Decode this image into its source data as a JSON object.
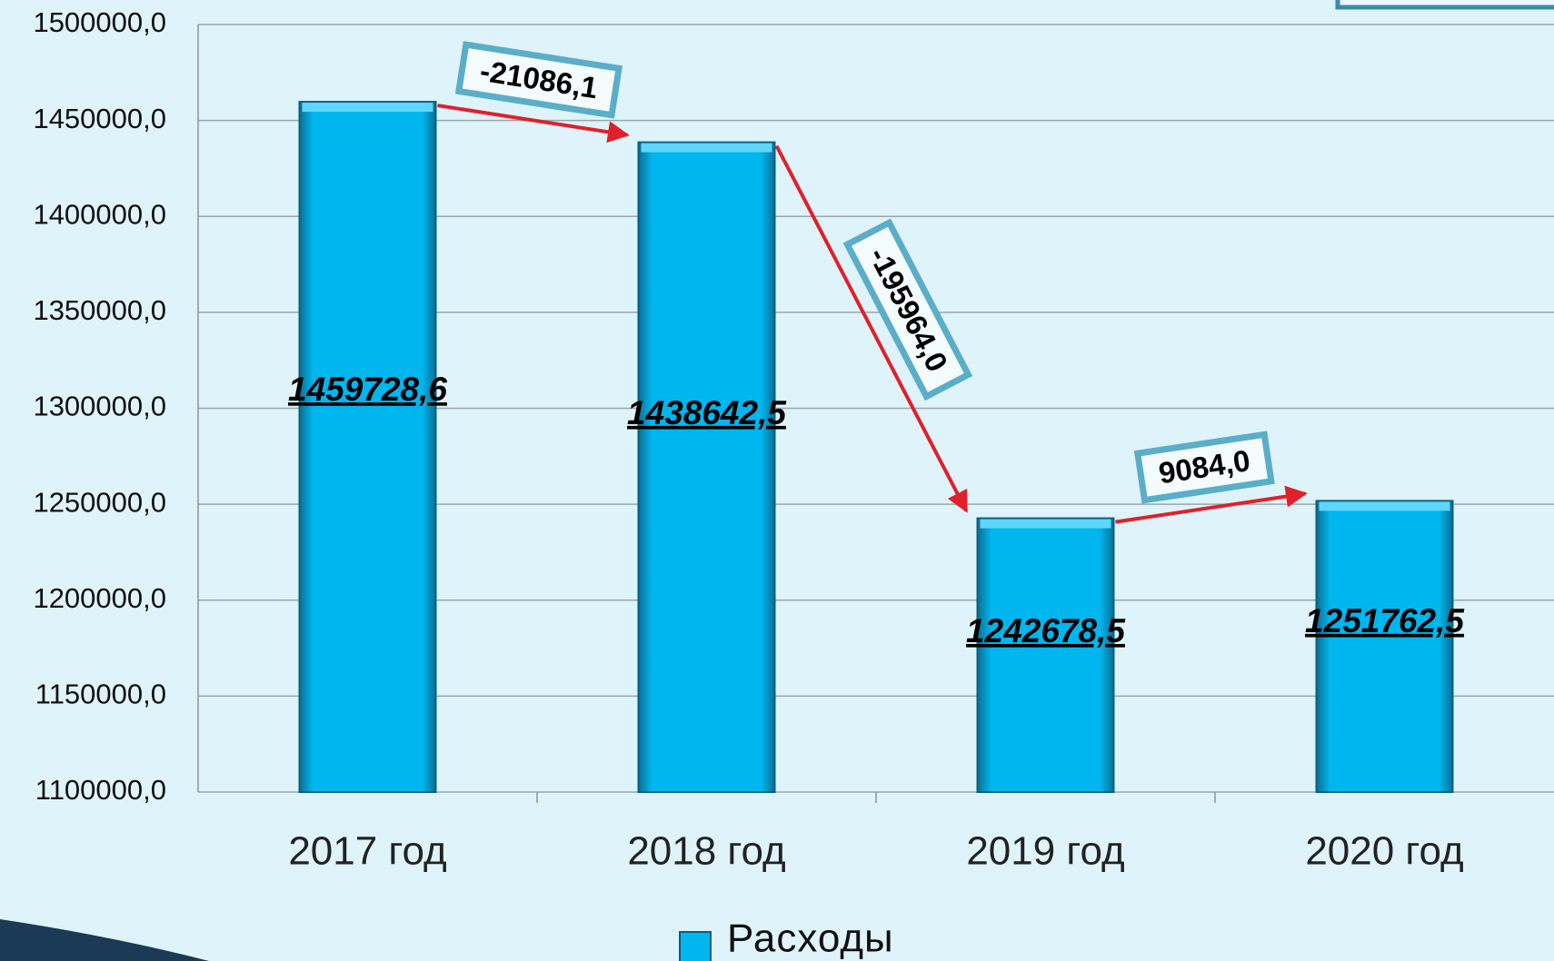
{
  "chart_data": {
    "type": "bar",
    "categories": [
      "2017 год",
      "2018 год",
      "2019 год",
      "2020 год"
    ],
    "series": [
      {
        "name": "Расходы",
        "color": "#00b6ee",
        "values": [
          1459728.6,
          1438642.5,
          1242678.5,
          1251762.5
        ],
        "value_labels": [
          "1459728,6",
          "1438642,5",
          "1242678,5",
          "1251762,5"
        ]
      }
    ],
    "annotations": [
      {
        "value": -21086.1,
        "label": "-21086,1"
      },
      {
        "value": -195964.0,
        "label": "-195964,0"
      },
      {
        "value": 9084.0,
        "label": "9084,0"
      }
    ],
    "ylim": [
      1100000,
      1500000
    ],
    "yticks": [
      {
        "value": 1100000,
        "label": "1100000,0"
      },
      {
        "value": 1150000,
        "label": "1150000,0"
      },
      {
        "value": 1200000,
        "label": "1200000,0"
      },
      {
        "value": 1250000,
        "label": "1250000,0"
      },
      {
        "value": 1300000,
        "label": "1300000,0"
      },
      {
        "value": 1350000,
        "label": "1350000,0"
      },
      {
        "value": 1400000,
        "label": "1400000,0"
      },
      {
        "value": 1450000,
        "label": "1450000,0"
      },
      {
        "value": 1500000,
        "label": "1500000,0"
      }
    ],
    "grid": true
  }
}
